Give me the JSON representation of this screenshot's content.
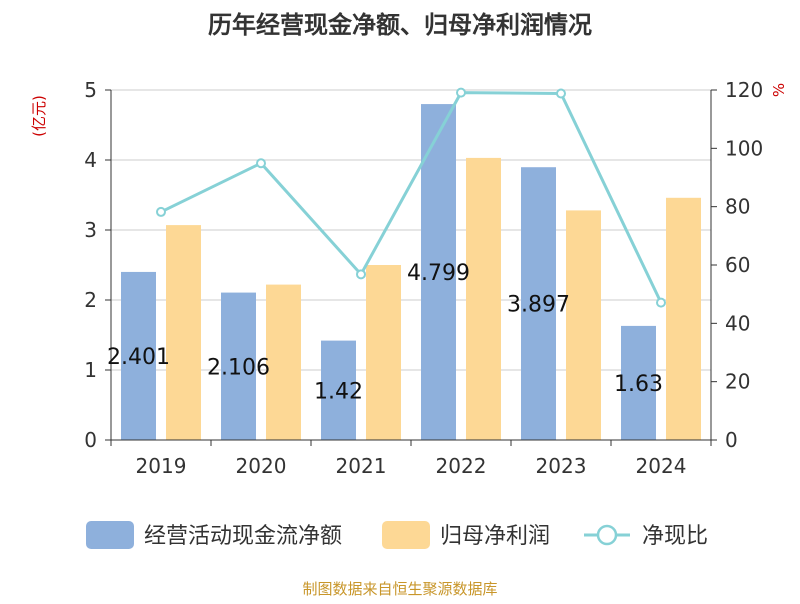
{
  "chart_data": {
    "type": "bar",
    "title": "历年经营现金净额、归母净利润情况",
    "categories": [
      "2019",
      "2020",
      "2021",
      "2022",
      "2023",
      "2024"
    ],
    "y_left": {
      "unit_label": "(亿元)",
      "range": [
        0,
        5
      ],
      "ticks": [
        0,
        1,
        2,
        3,
        4,
        5
      ]
    },
    "y_right": {
      "unit_label": "%",
      "range": [
        0,
        120
      ],
      "ticks": [
        0,
        20,
        40,
        60,
        80,
        100,
        120
      ]
    },
    "grid": true,
    "legend_position": "bottom",
    "series": [
      {
        "name": "经营活动现金流净额",
        "type": "bar",
        "axis": "left",
        "color": "#8eb0dc",
        "values": [
          2.401,
          2.106,
          1.42,
          4.799,
          3.897,
          1.63
        ],
        "data_labels": [
          "2.401",
          "2.106",
          "1.42",
          "4.799",
          "3.897",
          "1.63"
        ]
      },
      {
        "name": "归母净利润",
        "type": "bar",
        "axis": "left",
        "color": "#fdd895",
        "values": [
          3.07,
          2.22,
          2.5,
          4.03,
          3.28,
          3.46
        ]
      },
      {
        "name": "净现比",
        "type": "line",
        "axis": "right",
        "color": "#86d1d6",
        "values": [
          78.2,
          94.9,
          56.8,
          119.1,
          118.8,
          47.1
        ]
      }
    ]
  },
  "footer": {
    "source": "制图数据来自恒生聚源数据库"
  },
  "colors": {
    "title": "#333333",
    "axis_unit": "#cc0000",
    "source": "#c8962a",
    "grid": "#cccccc",
    "axis_text": "#333333"
  }
}
